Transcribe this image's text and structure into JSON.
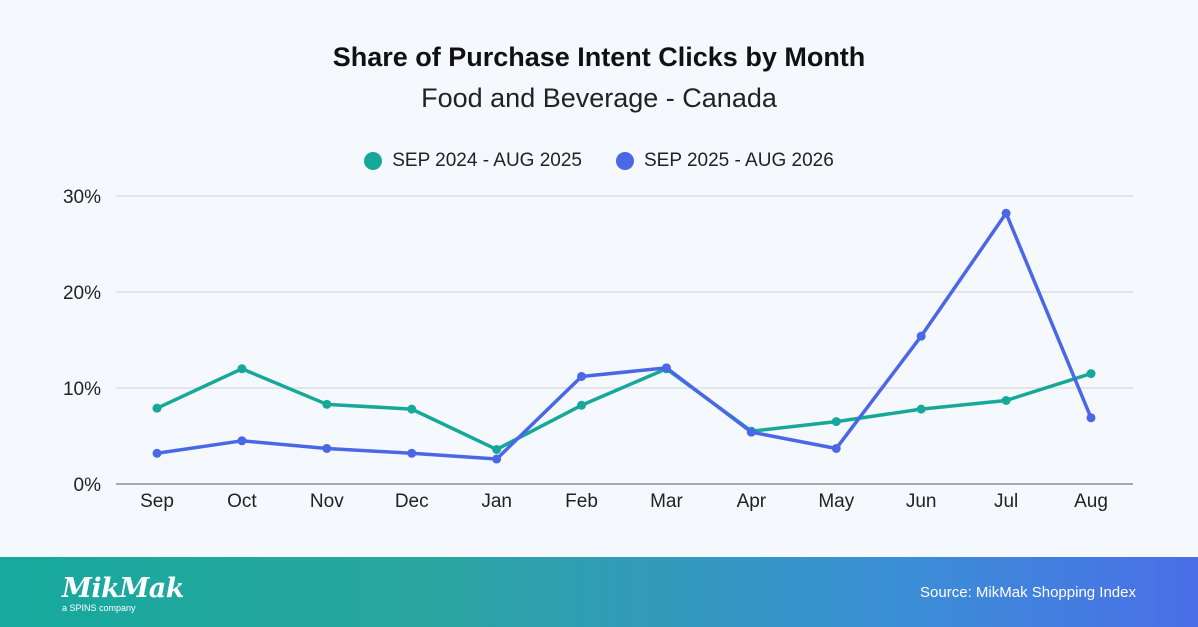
{
  "chart_data": {
    "type": "line",
    "title": "Share of Purchase Intent Clicks by Month",
    "subtitle": "Food and Beverage - Canada",
    "categories": [
      "Sep",
      "Oct",
      "Nov",
      "Dec",
      "Jan",
      "Feb",
      "Mar",
      "Apr",
      "May",
      "Jun",
      "Jul",
      "Aug"
    ],
    "series": [
      {
        "name": "SEP 2024 - AUG 2025",
        "color": "#17a89a",
        "values": [
          7.9,
          12.0,
          8.3,
          7.8,
          3.6,
          8.2,
          12.0,
          5.5,
          6.5,
          7.8,
          8.7,
          11.5
        ]
      },
      {
        "name": "SEP 2025 - AUG 2026",
        "color": "#4a68e6",
        "values": [
          3.2,
          4.5,
          3.7,
          3.2,
          2.6,
          11.2,
          12.1,
          5.4,
          3.7,
          15.4,
          28.2,
          6.9
        ]
      }
    ],
    "yticks": [
      0,
      10,
      20,
      30
    ],
    "ytick_labels": [
      "0%",
      "10%",
      "20%",
      "30%"
    ],
    "ylim": [
      0,
      30
    ],
    "grid": true,
    "legend": "top-center"
  },
  "footer": {
    "logo_text": "MikMak",
    "logo_subtext": "a SPINS company",
    "source": "Source: MikMak Shopping Index"
  }
}
